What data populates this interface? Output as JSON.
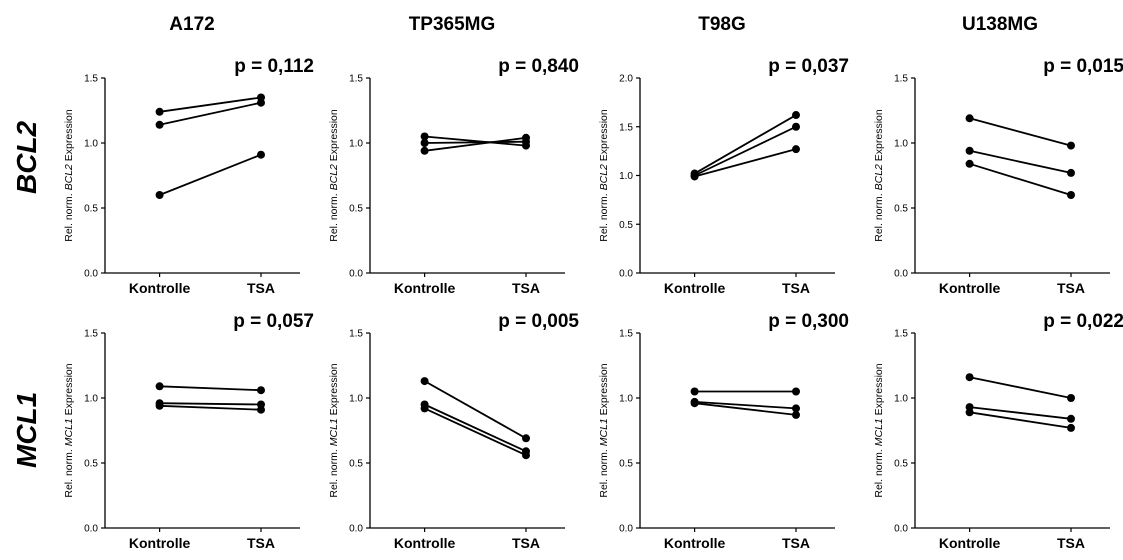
{
  "figure": {
    "columns": [
      "A172",
      "TP365MG",
      "T98G",
      "U138MG"
    ],
    "rows": [
      "BCL2",
      "MCL1"
    ]
  },
  "chart_data": [
    {
      "type": "line",
      "cell_line": "A172",
      "gene": "BCL2",
      "x": [
        "Kontrolle",
        "TSA"
      ],
      "ylabel": {
        "pre": "Rel. norm. ",
        "gene": "BCL2",
        "post": " Expression"
      },
      "ylim": [
        0,
        1.5
      ],
      "yticks": [
        "0.0",
        "0.5",
        "1.0",
        "1.5"
      ],
      "pvalue": "p = 0,112",
      "series": [
        {
          "values": [
            1.24,
            1.35
          ]
        },
        {
          "values": [
            1.14,
            1.31
          ]
        },
        {
          "values": [
            0.6,
            0.91
          ]
        }
      ]
    },
    {
      "type": "line",
      "cell_line": "TP365MG",
      "gene": "BCL2",
      "x": [
        "Kontrolle",
        "TSA"
      ],
      "ylabel": {
        "pre": "Rel. norm. ",
        "gene": "BCL2",
        "post": " Expression"
      },
      "ylim": [
        0,
        1.5
      ],
      "yticks": [
        "0.0",
        "0.5",
        "1.0",
        "1.5"
      ],
      "pvalue": "p = 0,840",
      "series": [
        {
          "values": [
            1.05,
            0.98
          ]
        },
        {
          "values": [
            1.0,
            1.01
          ]
        },
        {
          "values": [
            0.94,
            1.04
          ]
        }
      ]
    },
    {
      "type": "line",
      "cell_line": "T98G",
      "gene": "BCL2",
      "x": [
        "Kontrolle",
        "TSA"
      ],
      "ylabel": {
        "pre": "Rel. norm. ",
        "gene": "BCL2",
        "post": " Expression"
      },
      "ylim": [
        0,
        2.0
      ],
      "yticks": [
        "0.0",
        "0.5",
        "1.0",
        "1.5",
        "2.0"
      ],
      "pvalue": "p = 0,037",
      "series": [
        {
          "values": [
            1.02,
            1.62
          ]
        },
        {
          "values": [
            1.0,
            1.5
          ]
        },
        {
          "values": [
            0.99,
            1.27
          ]
        }
      ]
    },
    {
      "type": "line",
      "cell_line": "U138MG",
      "gene": "BCL2",
      "x": [
        "Kontrolle",
        "TSA"
      ],
      "ylabel": {
        "pre": "Rel. norm. ",
        "gene": "BCL2",
        "post": " Expression"
      },
      "ylim": [
        0,
        1.5
      ],
      "yticks": [
        "0.0",
        "0.5",
        "1.0",
        "1.5"
      ],
      "pvalue": "p = 0,015",
      "series": [
        {
          "values": [
            1.19,
            0.98
          ]
        },
        {
          "values": [
            0.94,
            0.77
          ]
        },
        {
          "values": [
            0.84,
            0.6
          ]
        }
      ]
    },
    {
      "type": "line",
      "cell_line": "A172",
      "gene": "MCL1",
      "x": [
        "Kontrolle",
        "TSA"
      ],
      "ylabel": {
        "pre": "Rel. norm. ",
        "gene": "MCL1",
        "post": " Expression"
      },
      "ylim": [
        0,
        1.5
      ],
      "yticks": [
        "0.0",
        "0.5",
        "1.0",
        "1.5"
      ],
      "pvalue": "p = 0,057",
      "series": [
        {
          "values": [
            1.09,
            1.06
          ]
        },
        {
          "values": [
            0.96,
            0.95
          ]
        },
        {
          "values": [
            0.94,
            0.91
          ]
        }
      ]
    },
    {
      "type": "line",
      "cell_line": "TP365MG",
      "gene": "MCL1",
      "x": [
        "Kontrolle",
        "TSA"
      ],
      "ylabel": {
        "pre": "Rel. norm. ",
        "gene": "MCL1",
        "post": " Expression"
      },
      "ylim": [
        0,
        1.5
      ],
      "yticks": [
        "0.0",
        "0.5",
        "1.0",
        "1.5"
      ],
      "pvalue": "p = 0,005",
      "series": [
        {
          "values": [
            1.13,
            0.69
          ]
        },
        {
          "values": [
            0.95,
            0.59
          ]
        },
        {
          "values": [
            0.92,
            0.56
          ]
        }
      ]
    },
    {
      "type": "line",
      "cell_line": "T98G",
      "gene": "MCL1",
      "x": [
        "Kontrolle",
        "TSA"
      ],
      "ylabel": {
        "pre": "Rel. norm. ",
        "gene": "MCL1",
        "post": " Expression"
      },
      "ylim": [
        0,
        1.5
      ],
      "yticks": [
        "0.0",
        "0.5",
        "1.0",
        "1.5"
      ],
      "pvalue": "p = 0,300",
      "series": [
        {
          "values": [
            1.05,
            1.05
          ]
        },
        {
          "values": [
            0.97,
            0.92
          ]
        },
        {
          "values": [
            0.96,
            0.87
          ]
        }
      ]
    },
    {
      "type": "line",
      "cell_line": "U138MG",
      "gene": "MCL1",
      "x": [
        "Kontrolle",
        "TSA"
      ],
      "ylabel": {
        "pre": "Rel. norm. ",
        "gene": "MCL1",
        "post": " Expression"
      },
      "ylim": [
        0,
        1.5
      ],
      "yticks": [
        "0.0",
        "0.5",
        "1.0",
        "1.5"
      ],
      "pvalue": "p = 0,022",
      "series": [
        {
          "values": [
            1.16,
            1.0
          ]
        },
        {
          "values": [
            0.93,
            0.84
          ]
        },
        {
          "values": [
            0.89,
            0.77
          ]
        }
      ]
    }
  ]
}
